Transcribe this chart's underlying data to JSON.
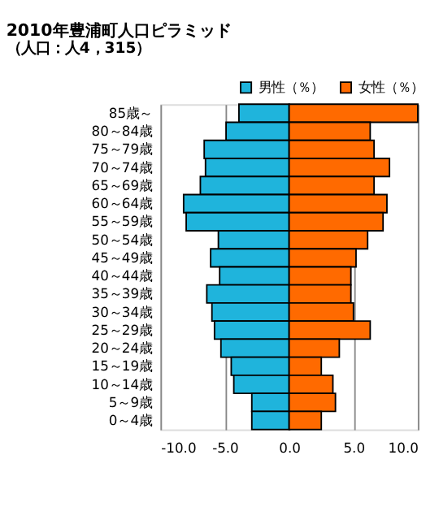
{
  "chart_data": {
    "type": "bar",
    "orientation": "horizontal",
    "title": "2010年豊浦町人口ピラミッド",
    "subtitle": "（人口：人4，315）",
    "categories": [
      "85歳～",
      "80～84歳",
      "75～79歳",
      "70～74歳",
      "65～69歳",
      "60～64歳",
      "55～59歳",
      "50～54歳",
      "45～49歳",
      "40～44歳",
      "35～39歳",
      "30～34歳",
      "25～29歳",
      "20～24歳",
      "15～19歳",
      "10～14歳",
      "5～9歳",
      "0～4歳"
    ],
    "series": [
      {
        "name": "男性（％）",
        "color": "#1fb4dc",
        "values": [
          -3.9,
          -4.9,
          -6.6,
          -6.5,
          -6.9,
          -8.2,
          -8.0,
          -5.5,
          -6.1,
          -5.4,
          -6.4,
          -6.0,
          -5.8,
          -5.3,
          -4.5,
          -4.3,
          -2.9,
          -2.9
        ]
      },
      {
        "name": "女性（％）",
        "color": "#ff6a00",
        "values": [
          10.0,
          6.3,
          6.6,
          7.8,
          6.6,
          7.6,
          7.3,
          6.1,
          5.2,
          4.8,
          4.8,
          5.0,
          6.3,
          3.9,
          2.5,
          3.4,
          3.6,
          2.5
        ]
      }
    ],
    "xlim": [
      -10,
      10
    ],
    "xticks": [
      {
        "value": -10,
        "label": "-10.0"
      },
      {
        "value": -5,
        "label": "-5.0"
      },
      {
        "value": 0,
        "label": "0.0"
      },
      {
        "value": 5,
        "label": "5.0"
      },
      {
        "value": 10,
        "label": "10.0"
      }
    ],
    "stacked": true,
    "grid": "x",
    "legend": "top right"
  }
}
